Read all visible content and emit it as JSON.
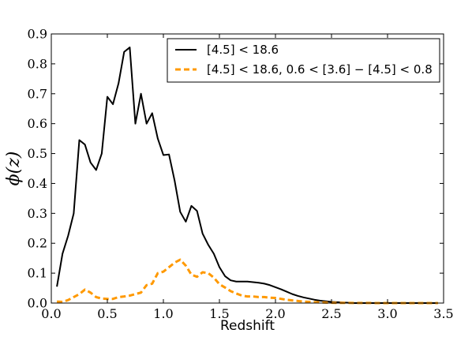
{
  "chart_data": {
    "type": "line",
    "xlabel": "Redshift",
    "ylabel": "ϕ(z)",
    "xlim": [
      0.0,
      3.5
    ],
    "ylim": [
      0.0,
      0.9
    ],
    "xticks": [
      0.0,
      0.5,
      1.0,
      1.5,
      2.0,
      2.5,
      3.0,
      3.5
    ],
    "xtick_labels": [
      "0.0",
      "0.5",
      "1.0",
      "1.5",
      "2.0",
      "2.5",
      "3.0",
      "3.5"
    ],
    "yticks": [
      0.0,
      0.1,
      0.2,
      0.3,
      0.4,
      0.5,
      0.6,
      0.7,
      0.8,
      0.9
    ],
    "ytick_labels": [
      "0.0",
      "0.1",
      "0.2",
      "0.3",
      "0.4",
      "0.5",
      "0.6",
      "0.7",
      "0.8",
      "0.9"
    ],
    "grid": false,
    "legend_position": "top-right",
    "series": [
      {
        "name": "[4.5] < 18.6",
        "color": "#000000",
        "style": "solid",
        "x": [
          0.05,
          0.1,
          0.15,
          0.2,
          0.25,
          0.3,
          0.35,
          0.4,
          0.45,
          0.5,
          0.55,
          0.6,
          0.65,
          0.7,
          0.75,
          0.8,
          0.85,
          0.9,
          0.95,
          1.0,
          1.05,
          1.1,
          1.15,
          1.2,
          1.25,
          1.3,
          1.35,
          1.4,
          1.45,
          1.5,
          1.55,
          1.6,
          1.65,
          1.7,
          1.75,
          1.8,
          1.85,
          1.9,
          1.95,
          2.0,
          2.05,
          2.1,
          2.15,
          2.2,
          2.25,
          2.3,
          2.35,
          2.4,
          2.45,
          2.5,
          2.55,
          2.6,
          2.65,
          2.7,
          2.75,
          2.8,
          2.85,
          2.9,
          2.95,
          3.0,
          3.05,
          3.1,
          3.15,
          3.2,
          3.25,
          3.3,
          3.35,
          3.4,
          3.45
        ],
        "y": [
          0.055,
          0.165,
          0.225,
          0.3,
          0.545,
          0.53,
          0.47,
          0.445,
          0.5,
          0.69,
          0.665,
          0.735,
          0.84,
          0.855,
          0.6,
          0.7,
          0.6,
          0.635,
          0.55,
          0.495,
          0.497,
          0.41,
          0.305,
          0.272,
          0.325,
          0.308,
          0.232,
          0.195,
          0.165,
          0.12,
          0.09,
          0.076,
          0.072,
          0.072,
          0.072,
          0.07,
          0.068,
          0.065,
          0.06,
          0.053,
          0.046,
          0.038,
          0.03,
          0.024,
          0.019,
          0.015,
          0.011,
          0.008,
          0.006,
          0.004,
          0.003,
          0.002,
          0.001,
          0.0,
          0.0,
          0.0,
          0.0,
          0.0,
          0.0,
          0.0,
          0.0,
          0.0,
          0.0,
          0.0,
          0.0,
          0.0,
          0.0,
          0.0,
          0.0
        ]
      },
      {
        "name": "[4.5] < 18.6,  0.6 < [3.6] − [4.5] < 0.8",
        "color": "#FF9900",
        "style": "dashed",
        "x": [
          0.05,
          0.1,
          0.15,
          0.2,
          0.25,
          0.3,
          0.35,
          0.4,
          0.45,
          0.5,
          0.55,
          0.6,
          0.65,
          0.7,
          0.75,
          0.8,
          0.85,
          0.9,
          0.95,
          1.0,
          1.05,
          1.1,
          1.15,
          1.2,
          1.25,
          1.3,
          1.35,
          1.4,
          1.45,
          1.5,
          1.55,
          1.6,
          1.65,
          1.7,
          1.75,
          1.8,
          1.85,
          1.9,
          1.95,
          2.0,
          2.05,
          2.1,
          2.15,
          2.2,
          2.25,
          2.3,
          2.35,
          2.4,
          2.45,
          2.5,
          2.55,
          2.6,
          2.65,
          2.7,
          2.75,
          2.8,
          2.85,
          2.9,
          2.95,
          3.0,
          3.05,
          3.1,
          3.15,
          3.2,
          3.25,
          3.3,
          3.35,
          3.4,
          3.45
        ],
        "y": [
          0.005,
          0.004,
          0.01,
          0.02,
          0.03,
          0.045,
          0.035,
          0.02,
          0.015,
          0.014,
          0.014,
          0.02,
          0.022,
          0.025,
          0.03,
          0.035,
          0.06,
          0.065,
          0.1,
          0.105,
          0.12,
          0.135,
          0.145,
          0.125,
          0.095,
          0.088,
          0.103,
          0.1,
          0.085,
          0.063,
          0.052,
          0.04,
          0.032,
          0.025,
          0.022,
          0.022,
          0.02,
          0.02,
          0.018,
          0.017,
          0.014,
          0.011,
          0.009,
          0.007,
          0.005,
          0.004,
          0.003,
          0.002,
          0.0015,
          0.001,
          0.0008,
          0.0006,
          0.0005,
          0.0004,
          0.0003,
          0.0002,
          0.0002,
          0.0001,
          0.0,
          0.0,
          0.0,
          0.0,
          0.0,
          0.0,
          0.0,
          0.0,
          0.0,
          0.0,
          0.0
        ]
      }
    ]
  }
}
